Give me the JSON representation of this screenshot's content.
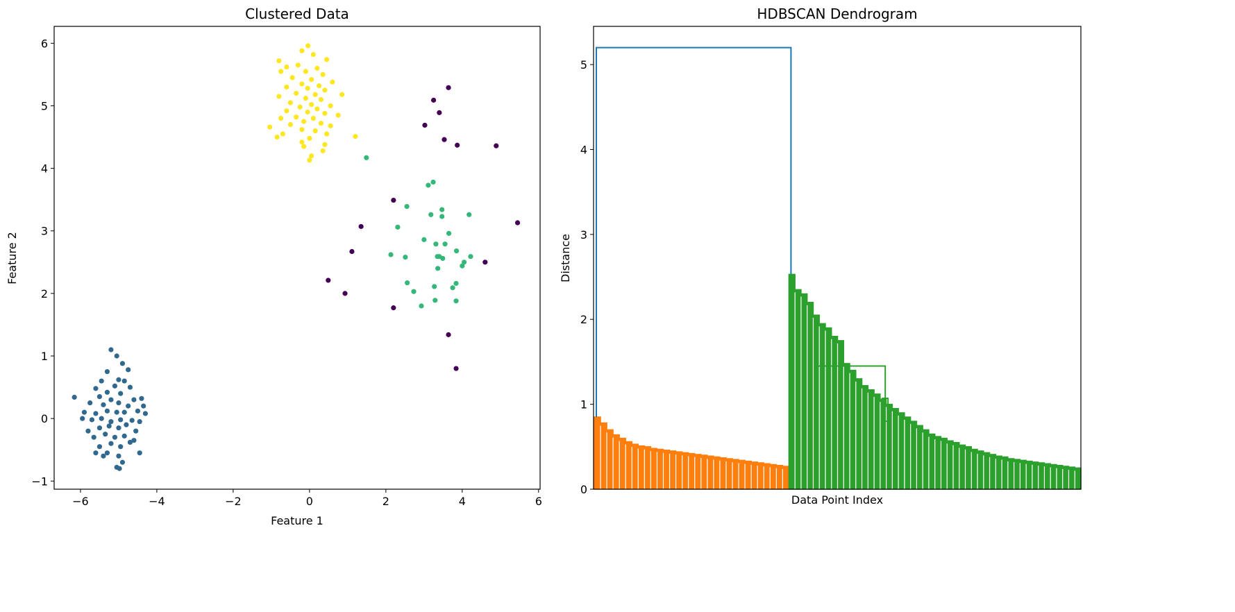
{
  "chart_data": [
    {
      "type": "scatter",
      "title": "Clustered Data",
      "xlabel": "Feature 1",
      "ylabel": "Feature 2",
      "xlim": [
        -6.69,
        6.04
      ],
      "ylim": [
        -1.13,
        6.27
      ],
      "xticks": [
        "−6",
        "−4",
        "−2",
        "0",
        "2",
        "4",
        "6"
      ],
      "xtick_values": [
        -6,
        -4,
        -2,
        0,
        2,
        4,
        6
      ],
      "yticks": [
        "−1",
        "0",
        "1",
        "2",
        "3",
        "4",
        "5",
        "6"
      ],
      "ytick_values": [
        -1,
        0,
        1,
        2,
        3,
        4,
        5,
        6
      ],
      "grid": false,
      "series": [
        {
          "color": "#440154",
          "points": [
            [
              3.64,
              5.29
            ],
            [
              3.25,
              5.09
            ],
            [
              3.4,
              4.89
            ],
            [
              3.02,
              4.69
            ],
            [
              3.53,
              4.46
            ],
            [
              3.87,
              4.37
            ],
            [
              4.89,
              4.36
            ],
            [
              5.45,
              3.13
            ],
            [
              2.2,
              3.49
            ],
            [
              1.35,
              3.07
            ],
            [
              1.11,
              2.67
            ],
            [
              0.49,
              2.21
            ],
            [
              0.93,
              2.0
            ],
            [
              2.2,
              1.77
            ],
            [
              4.6,
              2.5
            ],
            [
              3.64,
              1.34
            ],
            [
              3.84,
              0.8
            ]
          ]
        },
        {
          "color": "#31688e",
          "points": [
            [
              -6.16,
              0.34
            ],
            [
              -5.2,
              1.1
            ],
            [
              -5.05,
              1.0
            ],
            [
              -4.9,
              0.88
            ],
            [
              -5.3,
              0.75
            ],
            [
              -4.75,
              0.78
            ],
            [
              -5.45,
              0.6
            ],
            [
              -5.0,
              0.62
            ],
            [
              -4.85,
              0.6
            ],
            [
              -5.6,
              0.48
            ],
            [
              -5.1,
              0.52
            ],
            [
              -4.7,
              0.5
            ],
            [
              -5.3,
              0.42
            ],
            [
              -4.95,
              0.4
            ],
            [
              -5.5,
              0.35
            ],
            [
              -5.2,
              0.3
            ],
            [
              -4.6,
              0.3
            ],
            [
              -4.4,
              0.32
            ],
            [
              -5.75,
              0.25
            ],
            [
              -5.4,
              0.22
            ],
            [
              -5.0,
              0.25
            ],
            [
              -4.75,
              0.2
            ],
            [
              -4.35,
              0.2
            ],
            [
              -5.9,
              0.1
            ],
            [
              -5.6,
              0.08
            ],
            [
              -5.3,
              0.12
            ],
            [
              -5.05,
              0.1
            ],
            [
              -4.85,
              0.1
            ],
            [
              -4.5,
              0.12
            ],
            [
              -4.3,
              0.08
            ],
            [
              -5.95,
              0.0
            ],
            [
              -5.7,
              -0.02
            ],
            [
              -5.45,
              0.0
            ],
            [
              -5.2,
              -0.05
            ],
            [
              -4.95,
              -0.02
            ],
            [
              -4.65,
              -0.03
            ],
            [
              -4.45,
              -0.05
            ],
            [
              -5.8,
              -0.2
            ],
            [
              -5.5,
              -0.15
            ],
            [
              -5.25,
              -0.12
            ],
            [
              -5.0,
              -0.15
            ],
            [
              -4.8,
              -0.1
            ],
            [
              -4.55,
              -0.2
            ],
            [
              -5.65,
              -0.3
            ],
            [
              -5.35,
              -0.25
            ],
            [
              -5.1,
              -0.3
            ],
            [
              -4.85,
              -0.28
            ],
            [
              -4.6,
              -0.35
            ],
            [
              -5.5,
              -0.45
            ],
            [
              -5.2,
              -0.4
            ],
            [
              -4.95,
              -0.45
            ],
            [
              -4.7,
              -0.38
            ],
            [
              -5.6,
              -0.55
            ],
            [
              -5.3,
              -0.55
            ],
            [
              -5.0,
              -0.6
            ],
            [
              -4.45,
              -0.55
            ],
            [
              -5.4,
              -0.6
            ],
            [
              -4.9,
              -0.7
            ],
            [
              -5.05,
              -0.78
            ],
            [
              -4.98,
              -0.8
            ]
          ]
        },
        {
          "color": "#35b779",
          "points": [
            [
              1.49,
              4.17
            ],
            [
              3.24,
              3.78
            ],
            [
              3.11,
              3.73
            ],
            [
              2.55,
              3.39
            ],
            [
              3.47,
              3.34
            ],
            [
              3.47,
              3.23
            ],
            [
              3.18,
              3.26
            ],
            [
              4.18,
              3.26
            ],
            [
              2.31,
              3.06
            ],
            [
              3.0,
              2.86
            ],
            [
              3.65,
              2.96
            ],
            [
              3.31,
              2.79
            ],
            [
              3.55,
              2.79
            ],
            [
              3.85,
              2.68
            ],
            [
              2.13,
              2.62
            ],
            [
              2.51,
              2.58
            ],
            [
              3.35,
              2.59
            ],
            [
              3.4,
              2.59
            ],
            [
              4.22,
              2.59
            ],
            [
              4.05,
              2.5
            ],
            [
              4.0,
              2.44
            ],
            [
              3.36,
              2.4
            ],
            [
              2.56,
              2.17
            ],
            [
              3.84,
              2.16
            ],
            [
              2.73,
              2.03
            ],
            [
              3.27,
              2.11
            ],
            [
              3.75,
              2.09
            ],
            [
              3.29,
              1.89
            ],
            [
              2.93,
              1.8
            ],
            [
              3.84,
              1.88
            ],
            [
              3.49,
              2.56
            ]
          ]
        },
        {
          "color": "#fde725",
          "points": [
            [
              -0.04,
              5.96
            ],
            [
              -0.2,
              5.88
            ],
            [
              0.1,
              5.82
            ],
            [
              -0.8,
              5.72
            ],
            [
              0.45,
              5.74
            ],
            [
              -0.6,
              5.62
            ],
            [
              -0.3,
              5.65
            ],
            [
              0.2,
              5.6
            ],
            [
              -0.75,
              5.55
            ],
            [
              -0.1,
              5.55
            ],
            [
              0.35,
              5.5
            ],
            [
              -0.45,
              5.45
            ],
            [
              0.05,
              5.42
            ],
            [
              0.6,
              5.38
            ],
            [
              -0.2,
              5.35
            ],
            [
              0.25,
              5.32
            ],
            [
              -0.6,
              5.3
            ],
            [
              -0.05,
              5.28
            ],
            [
              0.4,
              5.25
            ],
            [
              -0.35,
              5.2
            ],
            [
              0.15,
              5.18
            ],
            [
              0.85,
              5.18
            ],
            [
              -0.8,
              5.15
            ],
            [
              -0.1,
              5.12
            ],
            [
              0.3,
              5.1
            ],
            [
              -0.5,
              5.05
            ],
            [
              0.05,
              5.02
            ],
            [
              0.55,
              5.0
            ],
            [
              -0.25,
              4.98
            ],
            [
              0.2,
              4.95
            ],
            [
              -0.6,
              4.92
            ],
            [
              -0.05,
              4.9
            ],
            [
              0.4,
              4.88
            ],
            [
              0.75,
              4.85
            ],
            [
              -0.35,
              4.82
            ],
            [
              0.1,
              4.8
            ],
            [
              -0.75,
              4.8
            ],
            [
              -0.15,
              4.75
            ],
            [
              0.3,
              4.72
            ],
            [
              -0.5,
              4.7
            ],
            [
              0.55,
              4.68
            ],
            [
              -1.04,
              4.66
            ],
            [
              -0.2,
              4.62
            ],
            [
              0.15,
              4.6
            ],
            [
              -0.7,
              4.55
            ],
            [
              0.45,
              4.55
            ],
            [
              -0.85,
              4.5
            ],
            [
              0.0,
              4.48
            ],
            [
              1.2,
              4.51
            ],
            [
              -0.2,
              4.42
            ],
            [
              0.4,
              4.38
            ],
            [
              -0.15,
              4.35
            ],
            [
              0.35,
              4.28
            ],
            [
              0.05,
              4.2
            ],
            [
              0.0,
              4.13
            ]
          ]
        }
      ]
    },
    {
      "type": "dendrogram",
      "title": "HDBSCAN Dendrogram",
      "xlabel": "Data Point Index",
      "ylabel": "Distance",
      "ylim": [
        0,
        5.45
      ],
      "yticks": [
        "0",
        "1",
        "2",
        "3",
        "4",
        "5"
      ],
      "ytick_values": [
        0,
        1,
        2,
        3,
        4,
        5
      ],
      "grid": false,
      "root": {
        "height": 5.2,
        "color": "#1f77b4"
      },
      "clusters": [
        {
          "color": "#ff7f0e",
          "leaf_fraction": 0.4,
          "envelope": [
            0.85,
            0.78,
            0.7,
            0.64,
            0.6,
            0.56,
            0.53,
            0.51,
            0.5,
            0.48,
            0.47,
            0.46,
            0.45,
            0.44,
            0.43,
            0.42,
            0.41,
            0.4,
            0.39,
            0.38,
            0.37,
            0.36,
            0.35,
            0.34,
            0.33,
            0.32,
            0.31,
            0.3,
            0.29,
            0.28,
            0.27
          ]
        },
        {
          "color": "#2ca02c",
          "leaf_fraction": 0.6,
          "envelope": [
            2.53,
            2.35,
            2.3,
            2.2,
            2.05,
            1.95,
            1.9,
            1.8,
            1.75,
            1.48,
            1.4,
            1.3,
            1.22,
            1.17,
            1.12,
            1.06,
            1.0,
            0.95,
            0.9,
            0.85,
            0.8,
            0.75,
            0.7,
            0.65,
            0.62,
            0.6,
            0.57,
            0.55,
            0.52,
            0.5,
            0.47,
            0.45,
            0.43,
            0.41,
            0.39,
            0.38,
            0.36,
            0.35,
            0.34,
            0.33,
            0.32,
            0.31,
            0.3,
            0.29,
            0.28,
            0.27,
            0.26,
            0.25
          ],
          "side_branch": {
            "height": 1.45,
            "child_height": 1.07
          }
        }
      ]
    }
  ]
}
